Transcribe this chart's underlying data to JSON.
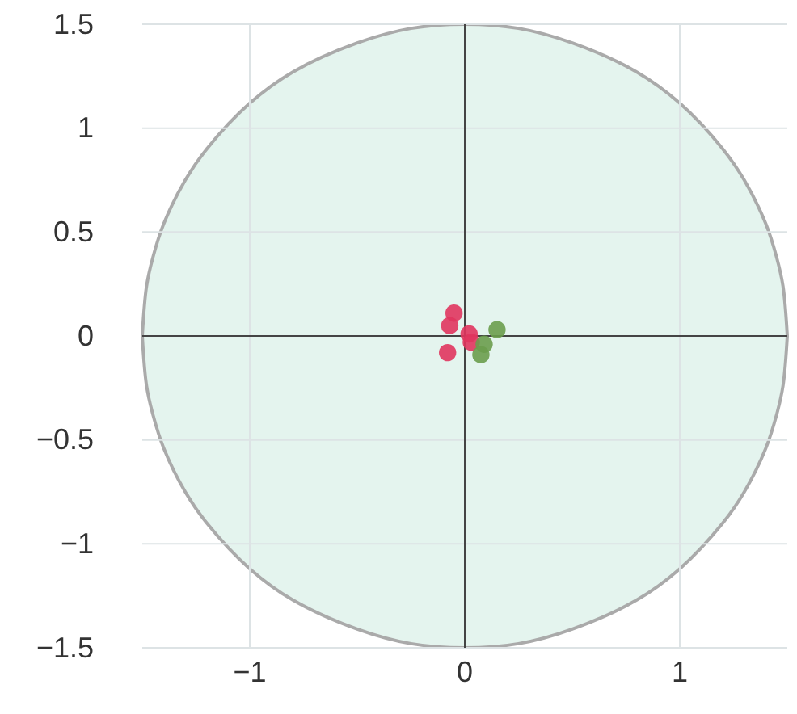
{
  "chart_data": {
    "type": "scatter",
    "xlim": [
      -1.5,
      1.5
    ],
    "ylim": [
      -1.5,
      1.5
    ],
    "xticks": [
      -1,
      0,
      1
    ],
    "yticks": [
      -1.5,
      -1,
      -0.5,
      0,
      0.5,
      1,
      1.5
    ],
    "grid": true,
    "series": [
      {
        "type": "area",
        "color": "#e4f4ee",
        "x": [
          -1.5,
          -1.48,
          -1.45,
          -1.4,
          -1.3,
          -1.2,
          -1,
          -0.8,
          -0.5,
          -0.25,
          0,
          0.25,
          0.5,
          0.8,
          1,
          1.2,
          1.3,
          1.4,
          1.45,
          1.48,
          1.5
        ],
        "values": [
          0,
          0.24,
          0.38,
          0.54,
          0.75,
          0.9,
          1.12,
          1.27,
          1.41,
          1.48,
          1.5,
          1.48,
          1.41,
          1.27,
          1.12,
          0.9,
          0.75,
          0.54,
          0.38,
          0.24,
          0
        ]
      },
      {
        "type": "area",
        "color": "#e4f4ee",
        "x": [
          -1.5,
          -1.48,
          -1.45,
          -1.4,
          -1.3,
          -1.2,
          -1,
          -0.8,
          -0.5,
          -0.25,
          0,
          0.25,
          0.5,
          0.8,
          1,
          1.2,
          1.3,
          1.4,
          1.45,
          1.48,
          1.5
        ],
        "values": [
          0,
          -0.24,
          -0.38,
          -0.54,
          -0.75,
          -0.9,
          -1.12,
          -1.27,
          -1.41,
          -1.48,
          -1.5,
          -1.48,
          -1.41,
          -1.27,
          -1.12,
          -0.9,
          -0.75,
          -0.54,
          -0.38,
          -0.24,
          0
        ]
      },
      {
        "marker": "circle",
        "color": "#e0355e",
        "x": [
          -0.05,
          -0.07,
          0.02,
          0.03,
          -0.08
        ],
        "values": [
          0.11,
          0.05,
          0.01,
          -0.03,
          -0.08
        ]
      },
      {
        "marker": "circle",
        "color": "#6a9d4c",
        "x": [
          0.15,
          0.075,
          0.09
        ],
        "values": [
          0.03,
          -0.09,
          -0.04
        ]
      }
    ]
  }
}
